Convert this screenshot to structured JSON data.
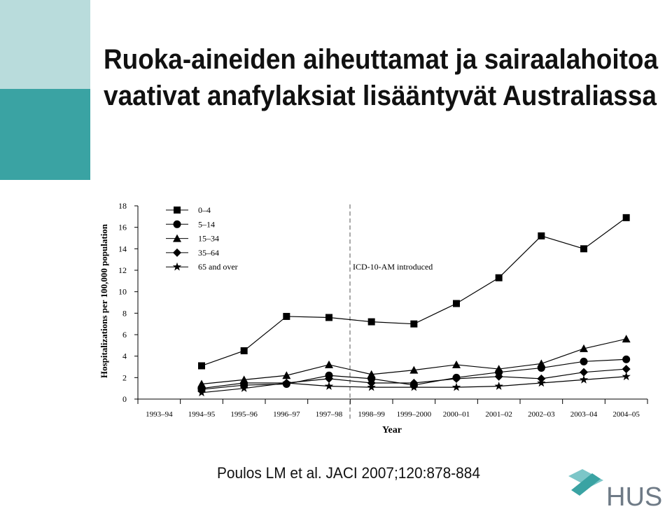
{
  "slide": {
    "title": [
      "Ruoka-aineiden aiheuttamat ja sairaalahoitoa",
      "vaativat anafylaksiat lisääntyvät Australiassa"
    ],
    "citation": "Poulos LM et al. JACI 2007;120:878-884",
    "logo": "HUS"
  },
  "chart_data": {
    "type": "line",
    "xlabel": "Year",
    "ylabel": "Hospitalizations per 100,000 population",
    "annotation": "ICD-10-AM introduced",
    "categories": [
      "1993–94",
      "1994–95",
      "1995–96",
      "1996–97",
      "1997–98",
      "1998–99",
      "1999–2000",
      "2000–01",
      "2001–02",
      "2002–03",
      "2003–04",
      "2004–05"
    ],
    "ylim": [
      0,
      18
    ],
    "yticks": [
      0,
      2,
      4,
      6,
      8,
      10,
      12,
      14,
      16,
      18
    ],
    "series": [
      {
        "name": "0–4",
        "color": "#000000",
        "marker": "square",
        "values": [
          null,
          3.1,
          4.5,
          7.7,
          7.6,
          7.2,
          7.0,
          8.9,
          11.3,
          15.2,
          14.0,
          16.9
        ]
      },
      {
        "name": "5–14",
        "color": "#000000",
        "marker": "circle",
        "values": [
          null,
          0.9,
          1.3,
          1.4,
          2.2,
          1.9,
          1.3,
          2.0,
          2.5,
          2.9,
          3.5,
          3.7
        ]
      },
      {
        "name": "15–34",
        "color": "#000000",
        "marker": "triangle",
        "values": [
          null,
          1.4,
          1.8,
          2.2,
          3.2,
          2.3,
          2.7,
          3.2,
          2.8,
          3.3,
          4.7,
          5.6
        ]
      },
      {
        "name": "35–64",
        "color": "#000000",
        "marker": "diamond",
        "values": [
          null,
          1.0,
          1.5,
          1.5,
          1.9,
          1.5,
          1.5,
          1.9,
          2.1,
          1.9,
          2.5,
          2.8
        ]
      },
      {
        "name": "65 and over",
        "color": "#000000",
        "marker": "star",
        "values": [
          null,
          0.6,
          1.0,
          1.5,
          1.2,
          1.1,
          1.1,
          1.1,
          1.2,
          1.5,
          1.8,
          2.1
        ]
      }
    ]
  }
}
